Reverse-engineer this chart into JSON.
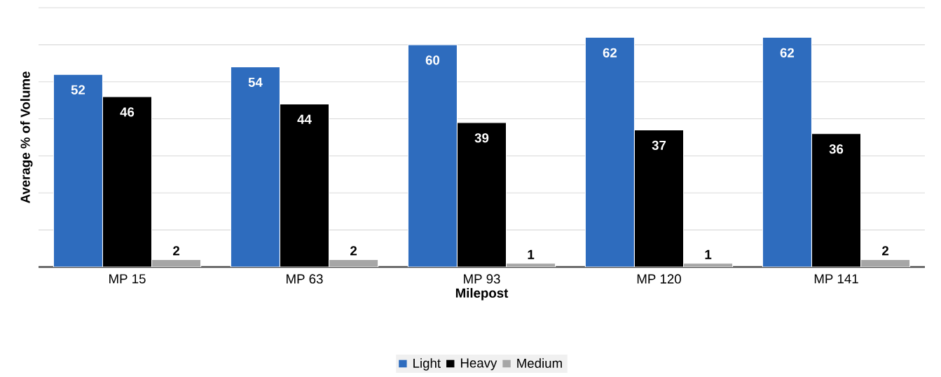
{
  "chart_data": {
    "type": "bar",
    "xlabel": "Milepost",
    "ylabel": "Average % of Volume",
    "categories": [
      "MP 15",
      "MP 63",
      "MP 93",
      "MP 120",
      "MP 141"
    ],
    "series": [
      {
        "name": "Light",
        "color": "#2e6cbe",
        "values": [
          52,
          54,
          60,
          62,
          62
        ]
      },
      {
        "name": "Heavy",
        "color": "#000000",
        "values": [
          46,
          44,
          39,
          37,
          36
        ]
      },
      {
        "name": "Medium",
        "color": "#a6a6a6",
        "values": [
          2,
          2,
          1,
          1,
          2
        ]
      }
    ],
    "ylim": [
      0,
      70
    ],
    "yticks": [
      {
        "value": 0,
        "label": null
      },
      {
        "value": 10,
        "label": null
      },
      {
        "value": 20,
        "label": null
      },
      {
        "value": 30,
        "label": null
      },
      {
        "value": 40,
        "label": null
      },
      {
        "value": 50,
        "label": null
      },
      {
        "value": 60,
        "label": null
      },
      {
        "value": 70,
        "label": null
      }
    ],
    "tick_labels": "x",
    "grid": "y",
    "legend": "bottom",
    "data_labels": true
  }
}
